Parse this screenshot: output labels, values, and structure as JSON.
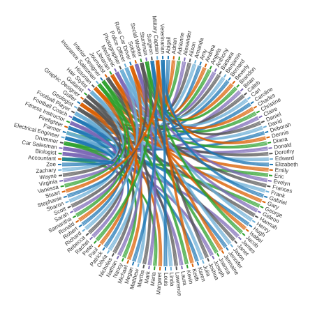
{
  "nodes": {
    "names": [
      "Abigail",
      "Adrian",
      "Adrienne",
      "Alexander",
      "Alison",
      "Amanda",
      "Amy",
      "Andrea",
      "Angela",
      "Anthony",
      "Barbara",
      "Benjamin",
      "Bernard",
      "Beverly",
      "Brandon",
      "Brian",
      "Caleb",
      "Carl",
      "Caroline",
      "Charles",
      "Christine",
      "Claire",
      "Daniel",
      "David",
      "Deborah",
      "Dennis",
      "Diana",
      "Donald",
      "Dorothy",
      "Edward",
      "Elizabeth",
      "Emily",
      "Eric",
      "Evelyn",
      "Frances",
      "Frank",
      "Gabriel",
      "Gary",
      "George",
      "Gideon",
      "Hannah",
      "Henry",
      "Hugh",
      "Isabel",
      "Jacob",
      "James",
      "Janet",
      "Jason",
      "Jennifer",
      "Jermaine",
      "Joanna",
      "Joseph",
      "Joshua",
      "Julia",
      "Karen",
      "Keith",
      "Kevin",
      "Laura",
      "Lawrence",
      "Linda",
      "Louis",
      "Margaret",
      "Maria",
      "Mark",
      "Martha",
      "Matthew",
      "Megan",
      "Michael",
      "Nancy",
      "Nathan",
      "Nicholas",
      "Olivia",
      "Patrick",
      "Paul",
      "Peter",
      "Rachel",
      "Rebecca",
      "Richard",
      "Robert",
      "Ronald",
      "Samantha",
      "Sarah",
      "Scott",
      "Sharon",
      "Stephanie",
      "Stuart",
      "Vanessa",
      "Virginia",
      "Wayne",
      "Zachary",
      "Zoe"
    ],
    "occupations": [
      "Accountant",
      "Biologist",
      "Car Salesman",
      "Drummer",
      "Electrical Engineer",
      "Farmer",
      "Firefighter",
      "Fitness Instructor",
      "Football Coach",
      "Football Player",
      "Geologist",
      "Golfer",
      "Graphic Designer",
      "Guitarist",
      "Hair Stylist",
      "Historian",
      "Insurance Salesman",
      "Interior Designer",
      "Journalist",
      "Librarian",
      "Mechanic",
      "Photographer",
      "Police Officer",
      "Race Car Driver",
      "Soldier",
      "Social Worker",
      "Stuntman",
      "Surgeon",
      "Military Captain",
      "Veterinarian"
    ]
  },
  "palette": [
    "#1f77b4",
    "#d95f02",
    "#2ca02c",
    "#7b68b5",
    "#555555",
    "#6baed6"
  ],
  "links": [
    [
      "Abigail",
      "Veterinarian"
    ],
    [
      "Adrian",
      "Golfer"
    ],
    [
      "Adrienne",
      "Farmer"
    ],
    [
      "Alexander",
      "Soldier"
    ],
    [
      "Alison",
      "Journalist"
    ],
    [
      "Amanda",
      "Accountant"
    ],
    [
      "Amy",
      "Surgeon"
    ],
    [
      "Andrea",
      "Historian"
    ],
    [
      "Angela",
      "Drummer"
    ],
    [
      "Anthony",
      "Mechanic"
    ],
    [
      "Barbara",
      "Geologist"
    ],
    [
      "Benjamin",
      "Police Officer"
    ],
    [
      "Bernard",
      "Firefighter"
    ],
    [
      "Beverly",
      "Librarian"
    ],
    [
      "Brandon",
      "Stuntman"
    ],
    [
      "Brian",
      "Biologist"
    ],
    [
      "Caleb",
      "Guitarist"
    ],
    [
      "Carl",
      "Photographer"
    ],
    [
      "Caroline",
      "Football Coach"
    ],
    [
      "Charles",
      "Race Car Driver"
    ],
    [
      "Christine",
      "Interior Designer"
    ],
    [
      "Claire",
      "Car Salesman"
    ],
    [
      "Daniel",
      "Social Worker"
    ],
    [
      "David",
      "Hair Stylist"
    ],
    [
      "Deborah",
      "Electrical Engineer"
    ],
    [
      "Dennis",
      "Military Captain"
    ],
    [
      "Diana",
      "Insurance Salesman"
    ],
    [
      "Donald",
      "Fitness Instructor"
    ],
    [
      "Dorothy",
      "Graphic Designer"
    ],
    [
      "Edward",
      "Football Player"
    ],
    [
      "Elizabeth",
      "Veterinarian"
    ],
    [
      "Emily",
      "Golfer"
    ],
    [
      "Eric",
      "Accountant"
    ],
    [
      "Evelyn",
      "Soldier"
    ],
    [
      "Frances",
      "Journalist"
    ],
    [
      "Frank",
      "Farmer"
    ],
    [
      "Gabriel",
      "Surgeon"
    ],
    [
      "Gary",
      "Historian"
    ],
    [
      "George",
      "Drummer"
    ],
    [
      "Gideon",
      "Mechanic"
    ],
    [
      "Hannah",
      "Geologist"
    ],
    [
      "Henry",
      "Police Officer"
    ],
    [
      "Hugh",
      "Firefighter"
    ],
    [
      "Isabel",
      "Librarian"
    ],
    [
      "Jacob",
      "Stuntman"
    ],
    [
      "James",
      "Biologist"
    ],
    [
      "Janet",
      "Guitarist"
    ],
    [
      "Jason",
      "Photographer"
    ],
    [
      "Jennifer",
      "Football Coach"
    ],
    [
      "Jermaine",
      "Race Car Driver"
    ],
    [
      "Joanna",
      "Interior Designer"
    ],
    [
      "Joseph",
      "Car Salesman"
    ],
    [
      "Joshua",
      "Social Worker"
    ],
    [
      "Julia",
      "Hair Stylist"
    ],
    [
      "Karen",
      "Electrical Engineer"
    ],
    [
      "Keith",
      "Military Captain"
    ],
    [
      "Kevin",
      "Insurance Salesman"
    ],
    [
      "Laura",
      "Fitness Instructor"
    ],
    [
      "Lawrence",
      "Graphic Designer"
    ],
    [
      "Linda",
      "Football Player"
    ],
    [
      "Louis",
      "Veterinarian"
    ],
    [
      "Margaret",
      "Golfer"
    ],
    [
      "Maria",
      "Accountant"
    ],
    [
      "Mark",
      "Soldier"
    ],
    [
      "Martha",
      "Journalist"
    ],
    [
      "Matthew",
      "Farmer"
    ],
    [
      "Megan",
      "Surgeon"
    ],
    [
      "Michael",
      "Historian"
    ],
    [
      "Nancy",
      "Drummer"
    ],
    [
      "Nathan",
      "Mechanic"
    ],
    [
      "Nicholas",
      "Geologist"
    ],
    [
      "Olivia",
      "Police Officer"
    ],
    [
      "Patrick",
      "Firefighter"
    ],
    [
      "Paul",
      "Librarian"
    ],
    [
      "Peter",
      "Stuntman"
    ],
    [
      "Rachel",
      "Biologist"
    ],
    [
      "Rebecca",
      "Guitarist"
    ],
    [
      "Richard",
      "Photographer"
    ],
    [
      "Robert",
      "Football Coach"
    ],
    [
      "Ronald",
      "Race Car Driver"
    ],
    [
      "Samantha",
      "Interior Designer"
    ],
    [
      "Sarah",
      "Car Salesman"
    ],
    [
      "Scott",
      "Social Worker"
    ],
    [
      "Sharon",
      "Hair Stylist"
    ],
    [
      "Stephanie",
      "Electrical Engineer"
    ],
    [
      "Stuart",
      "Military Captain"
    ],
    [
      "Vanessa",
      "Insurance Salesman"
    ],
    [
      "Virginia",
      "Fitness Instructor"
    ],
    [
      "Wayne",
      "Graphic Designer"
    ],
    [
      "Zachary",
      "Football Player"
    ],
    [
      "Zoe",
      "Accountant"
    ]
  ]
}
